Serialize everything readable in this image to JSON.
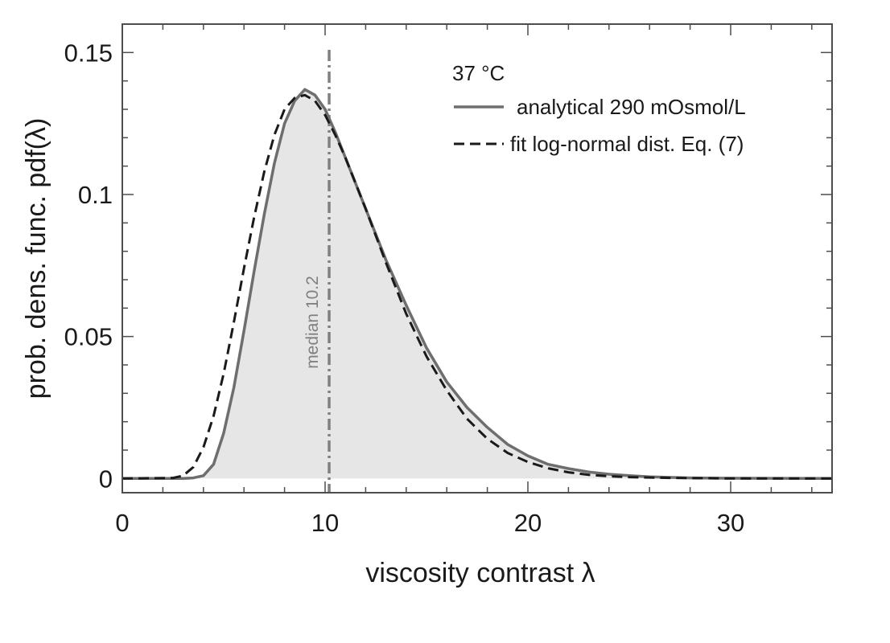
{
  "chart_data": {
    "type": "line",
    "xlabel": "viscosity contrast λ",
    "ylabel": "prob. dens. func. pdf(λ)",
    "xlim": [
      0,
      35
    ],
    "ylim": [
      -0.005,
      0.16
    ],
    "x_ticks": [
      0,
      10,
      20,
      30
    ],
    "y_ticks": [
      0,
      0.05,
      0.1,
      0.15
    ],
    "x_tick_labels": [
      "0",
      "10",
      "20",
      "30"
    ],
    "y_tick_labels": [
      "0",
      "0.05",
      "0.1",
      "0.15"
    ],
    "x_minor_step": 2,
    "y_minor_step": 0.01,
    "grid": false,
    "legend": {
      "position": "top-right",
      "title": "37 °C",
      "entries": [
        "analytical 290 mOsmol/L",
        "fit log-normal dist. Eq. (7)"
      ]
    },
    "series": [
      {
        "name": "analytical 290 mOsmol/L",
        "style": "solid",
        "color": "#6e6e6e",
        "filled": true,
        "x": [
          0,
          3,
          3.5,
          4,
          4.5,
          5,
          5.5,
          6,
          6.5,
          7,
          7.5,
          8,
          8.5,
          9,
          9.5,
          10,
          10.5,
          11,
          11.5,
          12,
          13,
          14,
          15,
          16,
          17,
          18,
          19,
          20,
          21,
          22,
          23,
          24,
          25,
          26,
          28,
          30,
          35
        ],
        "y": [
          0,
          0,
          0.0002,
          0.001,
          0.005,
          0.016,
          0.032,
          0.052,
          0.073,
          0.093,
          0.111,
          0.125,
          0.133,
          0.137,
          0.135,
          0.13,
          0.122,
          0.113,
          0.104,
          0.095,
          0.077,
          0.061,
          0.046,
          0.034,
          0.025,
          0.018,
          0.012,
          0.008,
          0.005,
          0.0035,
          0.0023,
          0.0015,
          0.001,
          0.0006,
          0.0002,
          0.0001,
          0
        ]
      },
      {
        "name": "fit log-normal dist. Eq. (7)",
        "style": "dashed",
        "color": "#1a1a1a",
        "filled": false,
        "x": [
          0,
          2.5,
          3,
          3.5,
          4,
          4.5,
          5,
          5.5,
          6,
          6.5,
          7,
          7.5,
          8,
          8.5,
          9,
          9.5,
          10,
          10.5,
          11,
          11.5,
          12,
          13,
          14,
          15,
          16,
          17,
          18,
          19,
          20,
          21,
          22,
          23,
          24,
          25,
          27,
          30,
          35
        ],
        "y": [
          0,
          0.0002,
          0.001,
          0.004,
          0.011,
          0.022,
          0.037,
          0.055,
          0.074,
          0.092,
          0.108,
          0.121,
          0.13,
          0.134,
          0.135,
          0.133,
          0.128,
          0.121,
          0.113,
          0.104,
          0.095,
          0.076,
          0.058,
          0.043,
          0.031,
          0.021,
          0.014,
          0.009,
          0.0058,
          0.0036,
          0.0022,
          0.0013,
          0.0008,
          0.0005,
          0.0002,
          0,
          0
        ]
      }
    ],
    "annotations": [
      {
        "type": "vline",
        "x": 10.2,
        "style": "dashdot",
        "color": "#808080",
        "label": "median  10.2"
      }
    ]
  }
}
